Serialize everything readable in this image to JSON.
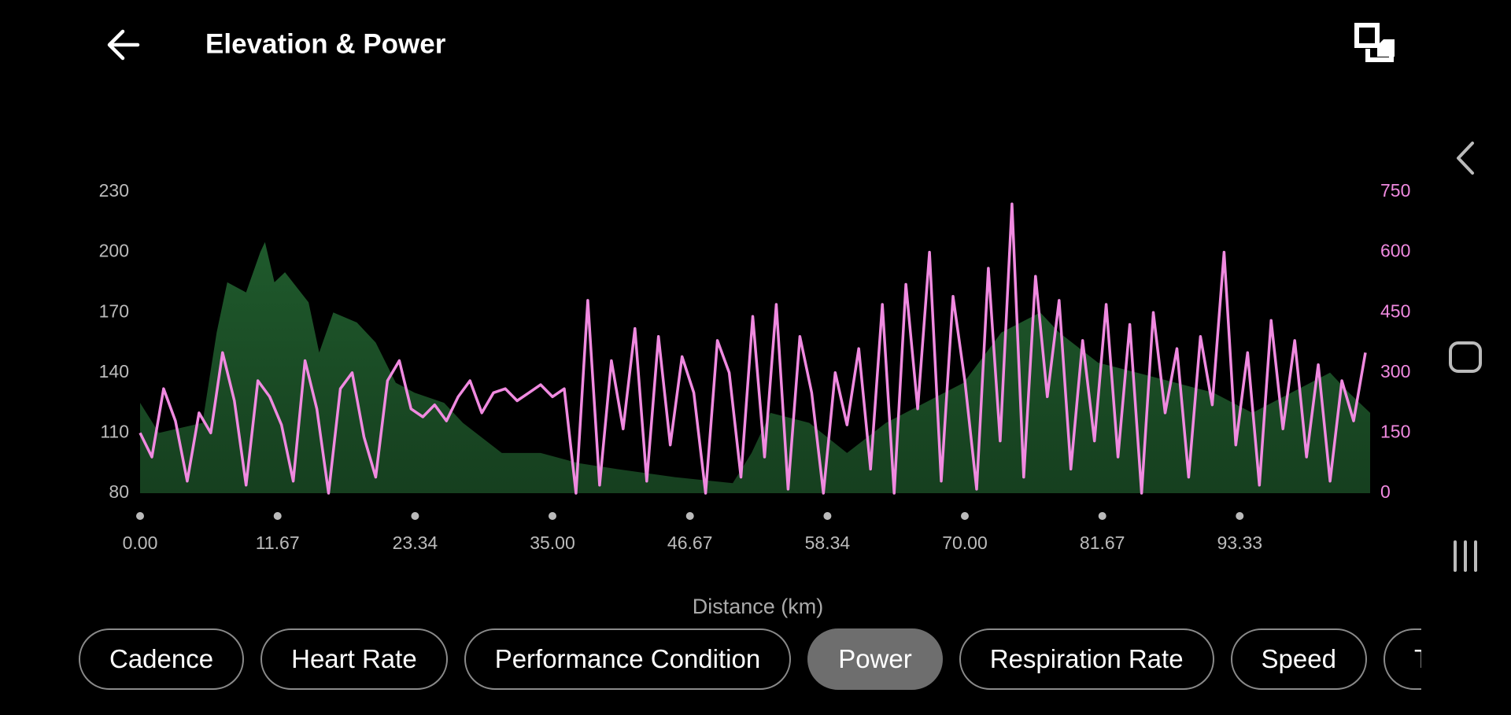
{
  "header": {
    "title": "Elevation & Power"
  },
  "chart_data": {
    "type": "line",
    "x_label": "Distance (km)",
    "xlim": [
      0,
      104.4
    ],
    "xticks": [
      {
        "value": 0,
        "label": "0.00"
      },
      11.67,
      23.34,
      {
        "value": 35,
        "label": "35.00"
      },
      46.67,
      58.34,
      {
        "value": 70,
        "label": "70.00"
      },
      81.67,
      93.33
    ],
    "ylim": [
      80,
      230
    ],
    "yticks": [
      80,
      110,
      140,
      170,
      200,
      230
    ],
    "y2lim": [
      0,
      750
    ],
    "y2ticks": [
      0,
      150,
      300,
      450,
      600,
      750
    ],
    "y2_color": "#f08ae0",
    "series": [
      {
        "type": "area",
        "color": "#1f5a2c",
        "x": [
          0,
          1.6,
          5.3,
          6.5,
          7.4,
          9.0,
          10.2,
          10.6,
          11.4,
          12.3,
          14.3,
          15.2,
          16.4,
          18.4,
          20.0,
          21.7,
          23.3,
          25.8,
          27.4,
          30.7,
          34.0,
          37.2,
          40.5,
          45.4,
          50.3,
          51.9,
          53.5,
          56.8,
          60.0,
          63.3,
          66.6,
          69.9,
          73.1,
          76.4,
          78.0,
          81.3,
          84.6,
          87.9,
          91.1,
          94.4,
          97.7,
          101.0,
          102.6,
          104.4
        ],
        "values": [
          125,
          110,
          115,
          160,
          185,
          180,
          200,
          205,
          185,
          190,
          175,
          150,
          170,
          165,
          155,
          135,
          130,
          125,
          115,
          100,
          100,
          95,
          92,
          88,
          85,
          100,
          120,
          115,
          100,
          115,
          125,
          135,
          160,
          170,
          160,
          145,
          140,
          135,
          130,
          120,
          130,
          140,
          130,
          120
        ]
      },
      {
        "type": "line",
        "axis": "y2",
        "color": "#f08ae0",
        "x": [
          0,
          1,
          2,
          3,
          4,
          5,
          6,
          7,
          8,
          9,
          10,
          11,
          12,
          13,
          14,
          15,
          16,
          17,
          18,
          19,
          20,
          21,
          22,
          23,
          24,
          25,
          26,
          27,
          28,
          29,
          30,
          31,
          32,
          33,
          34,
          35,
          36,
          37,
          38,
          39,
          40,
          41,
          42,
          43,
          44,
          45,
          46,
          47,
          48,
          49,
          50,
          51,
          52,
          53,
          54,
          55,
          56,
          57,
          58,
          59,
          60,
          61,
          62,
          63,
          64,
          65,
          66,
          67,
          68,
          69,
          70,
          71,
          72,
          73,
          74,
          75,
          76,
          77,
          78,
          79,
          80,
          81,
          82,
          83,
          84,
          85,
          86,
          87,
          88,
          89,
          90,
          91,
          92,
          93,
          94,
          95,
          96,
          97,
          98,
          99,
          100,
          101,
          102,
          103,
          104
        ],
        "values": [
          150,
          90,
          260,
          180,
          30,
          200,
          150,
          350,
          230,
          20,
          280,
          240,
          170,
          30,
          330,
          210,
          0,
          260,
          300,
          140,
          40,
          280,
          330,
          210,
          190,
          220,
          180,
          240,
          280,
          200,
          250,
          260,
          230,
          250,
          270,
          240,
          260,
          0,
          480,
          20,
          330,
          160,
          410,
          30,
          390,
          120,
          340,
          250,
          0,
          380,
          300,
          40,
          440,
          90,
          470,
          10,
          390,
          250,
          0,
          300,
          170,
          360,
          60,
          470,
          0,
          520,
          210,
          600,
          30,
          490,
          280,
          10,
          560,
          130,
          720,
          40,
          540,
          240,
          480,
          60,
          380,
          130,
          470,
          90,
          420,
          0,
          450,
          200,
          360,
          40,
          390,
          220,
          600,
          120,
          350,
          20,
          430,
          160,
          380,
          90,
          320,
          30,
          280,
          180,
          350
        ]
      }
    ]
  },
  "ui": {
    "tabs": [
      "Cadence",
      "Heart Rate",
      "Performance Condition",
      "Power",
      "Respiration Rate",
      "Speed",
      "Te"
    ],
    "selected": 3
  }
}
